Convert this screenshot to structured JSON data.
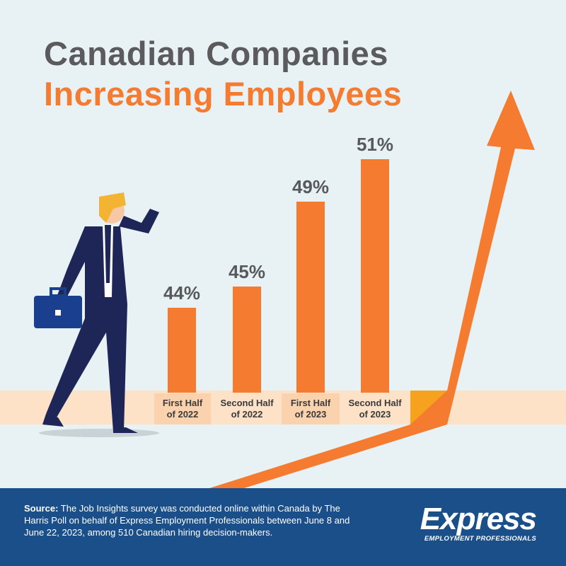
{
  "chart_data": {
    "type": "bar",
    "title": "Canadian Companies",
    "subtitle": "Increasing Employees",
    "categories": [
      "First Half of 2022",
      "Second Half of 2022",
      "First Half of 2023",
      "Second Half of 2023"
    ],
    "values": [
      44,
      45,
      49,
      51
    ],
    "value_labels": [
      "44%",
      "45%",
      "49%",
      "51%"
    ],
    "color": "#f47b30",
    "ylim": [
      40,
      55
    ]
  },
  "footer": {
    "source_label": "Source:",
    "source_text": "The Job Insights survey was conducted online within Canada by The Harris Poll on behalf of Express Employment Professionals between June 8 and June 22, 2023, among 510 Canadian hiring decision-makers."
  },
  "logo": {
    "name": "Express",
    "tagline": "EMPLOYMENT PROFESSIONALS"
  }
}
